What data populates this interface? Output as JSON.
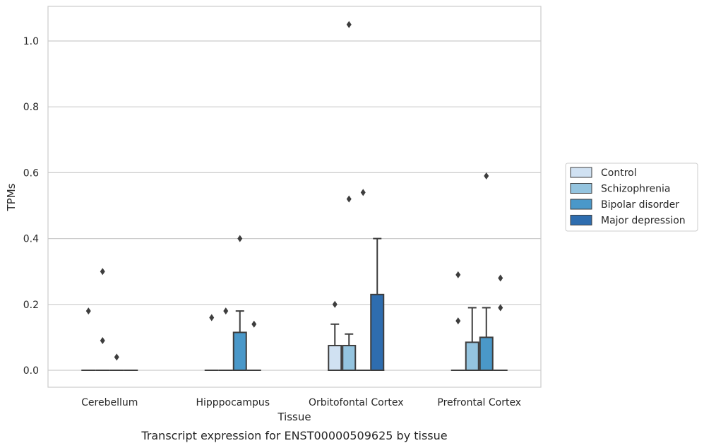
{
  "chart_data": {
    "type": "box",
    "title": "",
    "caption": "Transcript expression for ENST00000509625 by tissue",
    "xlabel": "Tissue",
    "ylabel": "TPMs",
    "ylim": [
      -0.05,
      1.1
    ],
    "yticks": [
      0.0,
      0.2,
      0.4,
      0.6,
      0.8,
      1.0
    ],
    "ytick_labels": [
      "0.0",
      "0.2",
      "0.4",
      "0.6",
      "0.8",
      "1.0"
    ],
    "grid": "horizontal",
    "legend_position": "right",
    "categories": [
      "Cerebellum",
      "Hipppocampus",
      "Orbitofontal Cortex",
      "Prefrontal Cortex"
    ],
    "series": [
      {
        "name": "Control",
        "color": "#d0e1f2",
        "boxes": [
          {
            "q1": 0,
            "median": 0,
            "q3": 0,
            "whisker_low": 0,
            "whisker_high": 0,
            "outliers": [
              0.18
            ]
          },
          {
            "q1": 0,
            "median": 0,
            "q3": 0,
            "whisker_low": 0,
            "whisker_high": 0,
            "outliers": [
              0.16
            ]
          },
          {
            "q1": 0,
            "median": 0,
            "q3": 0.075,
            "whisker_low": 0,
            "whisker_high": 0.14,
            "outliers": [
              0.2
            ]
          },
          {
            "q1": 0,
            "median": 0,
            "q3": 0,
            "whisker_low": 0,
            "whisker_high": 0,
            "outliers": [
              0.15,
              0.29
            ]
          }
        ]
      },
      {
        "name": "Schizophrenia",
        "color": "#94c4df",
        "boxes": [
          {
            "q1": 0,
            "median": 0,
            "q3": 0,
            "whisker_low": 0,
            "whisker_high": 0,
            "outliers": [
              0.09,
              0.3
            ]
          },
          {
            "q1": 0,
            "median": 0,
            "q3": 0,
            "whisker_low": 0,
            "whisker_high": 0,
            "outliers": [
              0.18
            ]
          },
          {
            "q1": 0,
            "median": 0,
            "q3": 0.075,
            "whisker_low": 0,
            "whisker_high": 0.11,
            "outliers": [
              0.52,
              1.05
            ]
          },
          {
            "q1": 0,
            "median": 0,
            "q3": 0.085,
            "whisker_low": 0,
            "whisker_high": 0.19,
            "outliers": []
          }
        ]
      },
      {
        "name": "Bipolar disorder",
        "color": "#4a98c9",
        "boxes": [
          {
            "q1": 0,
            "median": 0,
            "q3": 0,
            "whisker_low": 0,
            "whisker_high": 0,
            "outliers": [
              0.04
            ]
          },
          {
            "q1": 0,
            "median": 0,
            "q3": 0.115,
            "whisker_low": 0,
            "whisker_high": 0.18,
            "outliers": [
              0.4
            ]
          },
          {
            "q1": 0,
            "median": 0,
            "q3": 0,
            "whisker_low": 0,
            "whisker_high": 0,
            "outliers": [
              0.54
            ]
          },
          {
            "q1": 0,
            "median": 0,
            "q3": 0.1,
            "whisker_low": 0,
            "whisker_high": 0.19,
            "outliers": [
              0.59
            ]
          }
        ]
      },
      {
        "name": "Major depression",
        "color": "#2e6daf",
        "boxes": [
          {
            "q1": 0,
            "median": 0,
            "q3": 0,
            "whisker_low": 0,
            "whisker_high": 0,
            "outliers": []
          },
          {
            "q1": 0,
            "median": 0,
            "q3": 0,
            "whisker_low": 0,
            "whisker_high": 0,
            "outliers": [
              0.14
            ]
          },
          {
            "q1": 0,
            "median": 0,
            "q3": 0.23,
            "whisker_low": 0,
            "whisker_high": 0.4,
            "outliers": []
          },
          {
            "q1": 0,
            "median": 0,
            "q3": 0,
            "whisker_low": 0,
            "whisker_high": 0,
            "outliers": [
              0.19,
              0.28
            ]
          }
        ]
      }
    ]
  }
}
